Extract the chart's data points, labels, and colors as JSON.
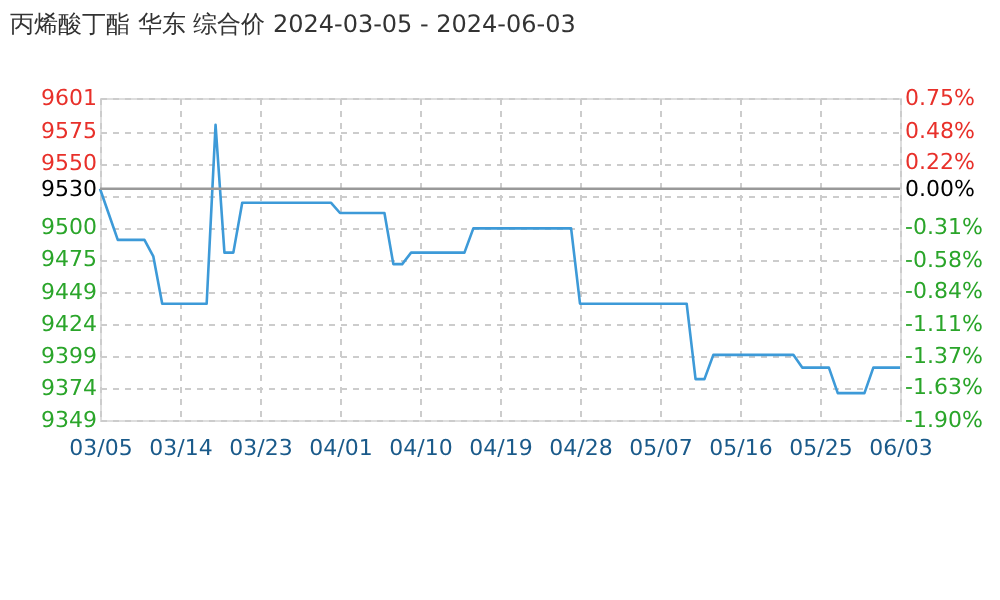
{
  "chart_data": {
    "type": "line",
    "title": "丙烯酸丁酯 华东 综合价 2024-03-05 - 2024-06-03",
    "x": [
      "2024-03-05",
      "2024-03-06",
      "2024-03-07",
      "2024-03-10",
      "2024-03-11",
      "2024-03-12",
      "2024-03-17",
      "2024-03-18",
      "2024-03-19",
      "2024-03-20",
      "2024-03-21",
      "2024-03-31",
      "2024-04-01",
      "2024-04-06",
      "2024-04-07",
      "2024-04-08",
      "2024-04-09",
      "2024-04-15",
      "2024-04-16",
      "2024-04-27",
      "2024-04-28",
      "2024-05-10",
      "2024-05-11",
      "2024-05-12",
      "2024-05-13",
      "2024-05-22",
      "2024-05-23",
      "2024-05-26",
      "2024-05-27",
      "2024-05-30",
      "2024-05-31",
      "2024-06-03"
    ],
    "series": [
      {
        "color": "#3d9ad8",
        "values": [
          9530,
          9510,
          9490,
          9490,
          9477,
          9440,
          9440,
          9580,
          9480,
          9480,
          9519,
          9519,
          9511,
          9511,
          9471,
          9471,
          9480,
          9480,
          9499,
          9499,
          9440,
          9440,
          9381,
          9381,
          9400,
          9400,
          9390,
          9390,
          9370,
          9370,
          9390,
          9390
        ]
      }
    ],
    "xlim": [
      "2024-03-05",
      "2024-06-03"
    ],
    "xticks": [
      {
        "value": "2024-03-05",
        "label": "03/05"
      },
      {
        "value": "2024-03-14",
        "label": "03/14"
      },
      {
        "value": "2024-03-23",
        "label": "03/23"
      },
      {
        "value": "2024-04-01",
        "label": "04/01"
      },
      {
        "value": "2024-04-10",
        "label": "04/10"
      },
      {
        "value": "2024-04-19",
        "label": "04/19"
      },
      {
        "value": "2024-04-28",
        "label": "04/28"
      },
      {
        "value": "2024-05-07",
        "label": "05/07"
      },
      {
        "value": "2024-05-16",
        "label": "05/16"
      },
      {
        "value": "2024-05-25",
        "label": "05/25"
      },
      {
        "value": "2024-06-03",
        "label": "06/03"
      }
    ],
    "ylim": [
      9349,
      9601
    ],
    "yticks": [
      9349,
      9374,
      9399,
      9424,
      9449,
      9475,
      9500,
      {
        "value": 9525,
        "label": null
      },
      9530,
      9550,
      9575,
      9601
    ],
    "y2lim": [
      -1.9,
      0.75
    ],
    "y2ticks": [
      {
        "value": -1.9,
        "label": "-1.90%"
      },
      {
        "value": -1.63,
        "label": "-1.63%"
      },
      {
        "value": -1.37,
        "label": "-1.37%"
      },
      {
        "value": -1.11,
        "label": "-1.11%"
      },
      {
        "value": -0.84,
        "label": "-0.84%"
      },
      {
        "value": -0.58,
        "label": "-0.58%"
      },
      {
        "value": -0.31,
        "label": "-0.31%"
      },
      {
        "value": 0,
        "label": "0.00%"
      },
      {
        "value": 0.22,
        "label": "0.22%"
      },
      {
        "value": 0.48,
        "label": "0.48%"
      },
      {
        "value": 0.75,
        "label": "0.75%"
      }
    ],
    "ref_lines": [
      {
        "axis": "y",
        "value": 9530,
        "color": "#999999"
      }
    ],
    "grid": true,
    "legend": false,
    "marker": "none",
    "line_style": "solid"
  }
}
